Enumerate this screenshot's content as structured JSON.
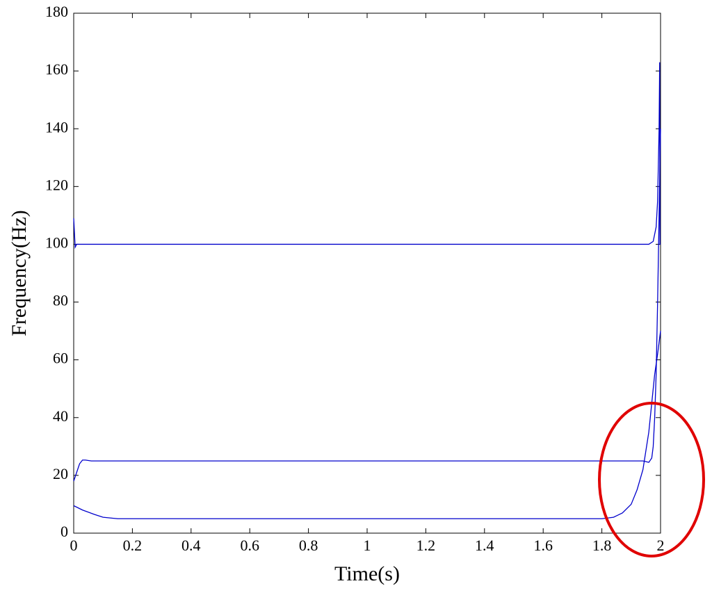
{
  "chart_data": {
    "type": "line",
    "x_label": "Time(s)",
    "y_label": "Frequency(Hz)",
    "xlim": [
      0,
      2
    ],
    "xticks": [
      0,
      0.2,
      0.4,
      0.6,
      0.8,
      1,
      1.2,
      1.4,
      1.6,
      1.8,
      2
    ],
    "ylim": [
      0,
      180
    ],
    "yticks": [
      0,
      20,
      40,
      60,
      80,
      100,
      120,
      140,
      160,
      180
    ],
    "series": [
      {
        "color": "#0000cc",
        "x": [
          0,
          0.005,
          0.01,
          0.1,
          0.5,
          1,
          1.5,
          1.9,
          1.96,
          1.975,
          1.985,
          1.99,
          1.995,
          1.997,
          1.998,
          2
        ],
        "values": [
          109,
          99,
          100,
          100,
          100,
          100,
          100,
          100,
          100,
          101,
          106,
          115,
          140,
          163,
          100,
          100
        ]
      },
      {
        "color": "#0000cc",
        "x": [
          0,
          0.01,
          0.02,
          0.03,
          0.04,
          0.06,
          0.5,
          1,
          1.5,
          1.94,
          1.96,
          1.97,
          1.975,
          1.98,
          1.985,
          1.99,
          1.995,
          2
        ],
        "values": [
          18,
          21,
          24,
          25.3,
          25.3,
          25,
          25,
          25,
          25,
          25,
          24.5,
          26,
          30,
          40,
          55,
          80,
          110,
          140
        ]
      },
      {
        "color": "#0000cc",
        "x": [
          0,
          0.03,
          0.07,
          0.1,
          0.15,
          0.5,
          1,
          1.5,
          1.8,
          1.84,
          1.87,
          1.9,
          1.92,
          1.94,
          1.96,
          1.97,
          1.98,
          1.99,
          2
        ],
        "values": [
          9.5,
          8,
          6.5,
          5.5,
          5,
          5,
          5,
          5,
          5,
          5.5,
          7,
          10,
          15,
          22,
          35,
          45,
          55,
          62,
          70
        ]
      }
    ]
  }
}
